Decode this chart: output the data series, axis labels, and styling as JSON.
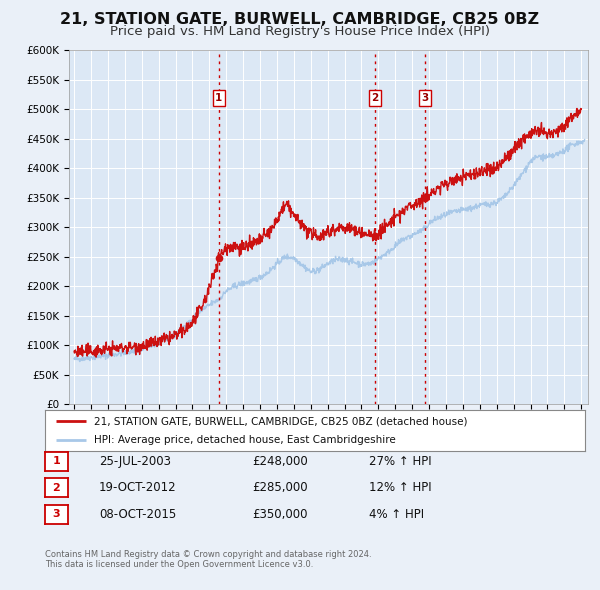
{
  "title": "21, STATION GATE, BURWELL, CAMBRIDGE, CB25 0BZ",
  "subtitle": "Price paid vs. HM Land Registry's House Price Index (HPI)",
  "ylim": [
    0,
    600000
  ],
  "yticks": [
    0,
    50000,
    100000,
    150000,
    200000,
    250000,
    300000,
    350000,
    400000,
    450000,
    500000,
    550000,
    600000
  ],
  "xlim_start": 1994.7,
  "xlim_end": 2025.4,
  "background_color": "#eaf0f8",
  "plot_bg_color": "#dce8f5",
  "grid_color": "#ffffff",
  "hpi_color": "#a8c8e8",
  "price_color": "#cc1111",
  "transactions": [
    {
      "label": "1",
      "date": 2003.56,
      "price": 248000,
      "date_str": "25-JUL-2003",
      "price_str": "£248,000",
      "hpi_pct": "27%"
    },
    {
      "label": "2",
      "date": 2012.8,
      "price": 285000,
      "date_str": "19-OCT-2012",
      "price_str": "£285,000",
      "hpi_pct": "12%"
    },
    {
      "label": "3",
      "date": 2015.77,
      "price": 350000,
      "date_str": "08-OCT-2015",
      "price_str": "£350,000",
      "hpi_pct": "4%"
    }
  ],
  "legend_line1": "21, STATION GATE, BURWELL, CAMBRIDGE, CB25 0BZ (detached house)",
  "legend_line2": "HPI: Average price, detached house, East Cambridgeshire",
  "footer1": "Contains HM Land Registry data © Crown copyright and database right 2024.",
  "footer2": "This data is licensed under the Open Government Licence v3.0."
}
